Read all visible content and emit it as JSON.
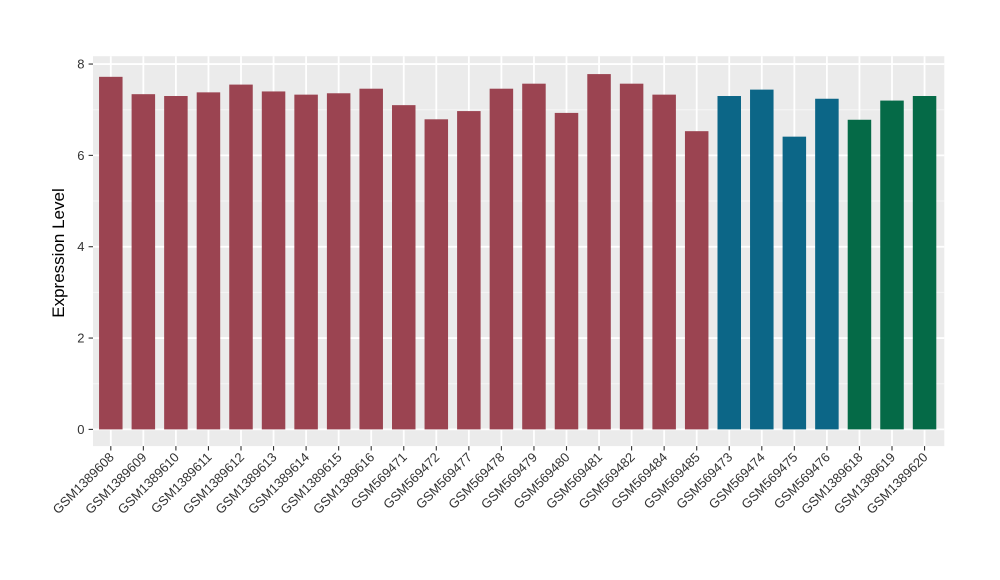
{
  "chart_data": {
    "type": "bar",
    "title": "",
    "xlabel": "",
    "ylabel": "Expression Level",
    "ylim": [
      -0.37,
      8.18
    ],
    "yticks": [
      0,
      2,
      4,
      6,
      8
    ],
    "grid": "major-and-minor-horizontal, major-vertical-at-categories",
    "legend": "none",
    "panel_bg": "#EBEBEB",
    "grid_major_color": "#FFFFFF",
    "grid_minor_color": "#F6F6F6",
    "tick_color": "#333333",
    "tick_label_color": "#333333",
    "axis_title_color": "#000000",
    "categories": [
      "GSM1389608",
      "GSM1389609",
      "GSM1389610",
      "GSM1389611",
      "GSM1389612",
      "GSM1389613",
      "GSM1389614",
      "GSM1389615",
      "GSM1389616",
      "GSM569471",
      "GSM569472",
      "GSM569477",
      "GSM569478",
      "GSM569479",
      "GSM569480",
      "GSM569481",
      "GSM569482",
      "GSM569484",
      "GSM569485",
      "GSM569473",
      "GSM569474",
      "GSM569475",
      "GSM569476",
      "GSM1389618",
      "GSM1389619",
      "GSM1389620"
    ],
    "values": [
      7.72,
      7.34,
      7.3,
      7.38,
      7.55,
      7.4,
      7.33,
      7.36,
      7.46,
      7.1,
      6.79,
      6.97,
      7.46,
      7.57,
      6.93,
      7.78,
      7.57,
      7.33,
      6.53,
      7.3,
      7.44,
      6.41,
      7.24,
      6.78,
      7.2,
      7.3
    ],
    "groups": [
      "group1",
      "group1",
      "group1",
      "group1",
      "group1",
      "group1",
      "group1",
      "group1",
      "group1",
      "group1",
      "group1",
      "group1",
      "group1",
      "group1",
      "group1",
      "group1",
      "group1",
      "group1",
      "group1",
      "group2",
      "group2",
      "group2",
      "group2",
      "group3",
      "group3",
      "group3"
    ],
    "group_colors": {
      "group1": "#9B4451",
      "group2": "#0C6687",
      "group3": "#056A47"
    }
  }
}
